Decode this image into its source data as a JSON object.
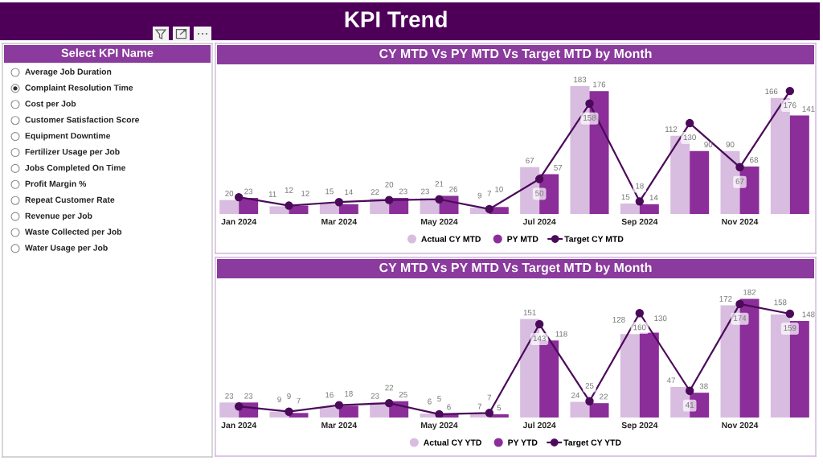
{
  "chart_data": [
    {
      "type": "other",
      "title": "KPI Trend"
    },
    {
      "type": "other",
      "title": "Select KPI Name",
      "categories": [
        "Average Job Duration",
        "Complaint Resolution Time",
        "Cost per Job",
        "Customer Satisfaction Score",
        "Equipment Downtime",
        "Fertilizer Usage per Job",
        "Jobs Completed On Time",
        "Profit Margin %",
        "Repeat Customer Rate",
        "Revenue per Job",
        "Waste Collected per Job",
        "Water Usage per Job"
      ],
      "colors": [
        "#ffffff",
        "#333333",
        "#ffffff",
        "#ffffff",
        "#ffffff",
        "#ffffff",
        "#ffffff",
        "#ffffff",
        "#ffffff",
        "#ffffff",
        "#ffffff",
        "#ffffff"
      ]
    },
    {
      "type": "bar",
      "title": "CY MTD Vs PY MTD Vs Target MTD by Month",
      "categories": [
        "Jan 2024",
        null,
        "Mar 2024",
        null,
        "May 2024",
        null,
        "Jul 2024",
        null,
        "Sep 2024",
        null,
        "Nov 2024",
        null
      ],
      "series": [
        {
          "name": "Actual CY MTD",
          "color": "#d8bde0",
          "values": [
            20,
            11,
            15,
            22,
            23,
            9,
            67,
            183,
            15,
            112,
            90,
            166
          ],
          "value_labels": [
            "20",
            "11",
            "15",
            "22",
            "23",
            "9",
            "67",
            "183",
            "15",
            "112",
            "90",
            "166"
          ]
        },
        {
          "name": "PY MTD",
          "color": "#8b2e99",
          "values": [
            23,
            12,
            14,
            23,
            26,
            10,
            57,
            176,
            14,
            90,
            68,
            141
          ],
          "value_labels": [
            "23",
            "12",
            "14",
            "23",
            "26",
            "10",
            "57",
            "176",
            "14",
            "90",
            "68",
            "141"
          ]
        },
        {
          "name": "Target CY MTD",
          "type": "line",
          "marker": "circle",
          "color": "#4b0b5a",
          "values": [
            24,
            12,
            17,
            20,
            21,
            7,
            50,
            158,
            18,
            130,
            67,
            176
          ],
          "value_labels": [
            null,
            "12",
            null,
            "20",
            "21",
            "7",
            "50",
            "158",
            "18",
            "130",
            "67",
            "176"
          ]
        }
      ],
      "legend": "bottom",
      "tick_labels": "x"
    },
    {
      "type": "bar",
      "title": "CY MTD Vs PY MTD Vs Target MTD by Month",
      "categories": [
        "Jan 2024",
        null,
        "Mar 2024",
        null,
        "May 2024",
        null,
        "Jul 2024",
        null,
        "Sep 2024",
        null,
        "Nov 2024",
        null
      ],
      "series": [
        {
          "name": "Actual CY YTD",
          "color": "#d8bde0",
          "values": [
            23,
            9,
            16,
            23,
            6,
            7,
            151,
            24,
            128,
            47,
            172,
            158
          ],
          "value_labels": [
            "23",
            "9",
            "16",
            "23",
            "6",
            "7",
            "151",
            "24",
            "128",
            "47",
            "172",
            "158"
          ]
        },
        {
          "name": "PY YTD",
          "color": "#8b2e99",
          "values": [
            23,
            7,
            18,
            25,
            6,
            5,
            118,
            22,
            130,
            38,
            182,
            148
          ],
          "value_labels": [
            "23",
            "7",
            "18",
            "25",
            "6",
            "5",
            "118",
            "22",
            "130",
            "38",
            "182",
            "148"
          ]
        },
        {
          "name": "Target CY YTD",
          "type": "line",
          "marker": "circle",
          "color": "#4b0b5a",
          "values": [
            17,
            9,
            19,
            22,
            5,
            7,
            143,
            25,
            160,
            41,
            174,
            159
          ],
          "value_labels": [
            null,
            "9",
            null,
            "22",
            "5",
            "7",
            "143",
            "25",
            "160",
            "41",
            "174",
            "159"
          ]
        }
      ],
      "legend": "bottom",
      "tick_labels": "x"
    }
  ]
}
